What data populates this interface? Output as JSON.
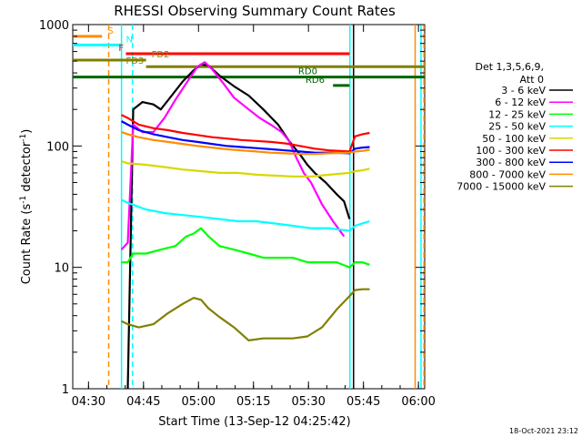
{
  "chart_data": {
    "type": "line",
    "title": "RHESSI Observing Summary Count Rates",
    "xlabel": "Start Time (13-Sep-12 04:25:42)",
    "ylabel": "Count Rate (s⁻¹ detector⁻¹)",
    "ylabel_parts": {
      "a": "Count Rate (s",
      "b": "-1",
      "c": " detector",
      "d": "-1",
      "e": ")"
    },
    "yscale": "log",
    "ylim": [
      1,
      1000
    ],
    "xlim_minutes": [
      0,
      96
    ],
    "x_ticks": [
      {
        "label": "04:30",
        "m": 4.3
      },
      {
        "label": "04:45",
        "m": 19.3
      },
      {
        "label": "05:00",
        "m": 34.3
      },
      {
        "label": "05:15",
        "m": 49.3
      },
      {
        "label": "05:30",
        "m": 64.3
      },
      {
        "label": "05:45",
        "m": 79.3
      },
      {
        "label": "06:00",
        "m": 94.3
      }
    ],
    "y_ticks": [
      {
        "label": "1",
        "v": 1
      },
      {
        "label": "10",
        "v": 10
      },
      {
        "label": "100",
        "v": 100
      },
      {
        "label": "1000",
        "v": 1000
      }
    ],
    "legend_header": [
      "Det 1,3,5,6,9,",
      "Att 0"
    ],
    "legend_position": "right",
    "series": [
      {
        "name": "3 - 6 keV",
        "color": "#000000",
        "points": [
          [
            15,
            1
          ],
          [
            16.5,
            200
          ],
          [
            19,
            230
          ],
          [
            22,
            220
          ],
          [
            24,
            200
          ],
          [
            27,
            260
          ],
          [
            30,
            340
          ],
          [
            33,
            420
          ],
          [
            35,
            470
          ],
          [
            37,
            460
          ],
          [
            40,
            380
          ],
          [
            44,
            310
          ],
          [
            48,
            260
          ],
          [
            52,
            200
          ],
          [
            56,
            150
          ],
          [
            59,
            110
          ],
          [
            62,
            85
          ],
          [
            64,
            70
          ],
          [
            66,
            60
          ],
          [
            69,
            50
          ],
          [
            72,
            40
          ],
          [
            74,
            35
          ],
          [
            75.5,
            25
          ]
        ]
      },
      {
        "name": "6 - 12 keV",
        "color": "#ff00ff",
        "points": [
          [
            13.3,
            14
          ],
          [
            15,
            16
          ],
          [
            16.5,
            150
          ],
          [
            19,
            130
          ],
          [
            22,
            130
          ],
          [
            25,
            170
          ],
          [
            28,
            240
          ],
          [
            31,
            330
          ],
          [
            34,
            450
          ],
          [
            36,
            490
          ],
          [
            38,
            430
          ],
          [
            41,
            330
          ],
          [
            44,
            250
          ],
          [
            48,
            200
          ],
          [
            51,
            170
          ],
          [
            54,
            150
          ],
          [
            57,
            130
          ],
          [
            59,
            110
          ],
          [
            61,
            80
          ],
          [
            63,
            60
          ],
          [
            65,
            50
          ],
          [
            68,
            33
          ],
          [
            71,
            24
          ],
          [
            74,
            18
          ]
        ]
      },
      {
        "name": "12 - 25 keV",
        "color": "#00ff00",
        "points": [
          [
            13.3,
            11
          ],
          [
            15,
            11
          ],
          [
            16.5,
            13
          ],
          [
            20,
            13
          ],
          [
            24,
            14
          ],
          [
            28,
            15
          ],
          [
            31,
            18
          ],
          [
            33,
            19
          ],
          [
            35,
            21
          ],
          [
            37,
            18
          ],
          [
            40,
            15
          ],
          [
            44,
            14
          ],
          [
            48,
            13
          ],
          [
            52,
            12
          ],
          [
            56,
            12
          ],
          [
            60,
            12
          ],
          [
            64,
            11
          ],
          [
            68,
            11
          ],
          [
            72,
            11
          ],
          [
            75.5,
            10
          ],
          [
            77,
            11
          ],
          [
            79,
            11
          ],
          [
            81,
            10.5
          ]
        ]
      },
      {
        "name": "25 - 50 keV",
        "color": "#00ffff",
        "points": [
          [
            13.3,
            36
          ],
          [
            15,
            34
          ],
          [
            20,
            30
          ],
          [
            25,
            28
          ],
          [
            30,
            27
          ],
          [
            35,
            26
          ],
          [
            40,
            25
          ],
          [
            45,
            24
          ],
          [
            50,
            24
          ],
          [
            55,
            23
          ],
          [
            60,
            22
          ],
          [
            65,
            21
          ],
          [
            70,
            21
          ],
          [
            75.5,
            20
          ],
          [
            77,
            22
          ],
          [
            79,
            23
          ],
          [
            81,
            24
          ]
        ]
      },
      {
        "name": "50 - 100 keV",
        "color": "#d8d800",
        "points": [
          [
            13.3,
            75
          ],
          [
            15,
            72
          ],
          [
            20,
            70
          ],
          [
            25,
            67
          ],
          [
            30,
            64
          ],
          [
            35,
            62
          ],
          [
            40,
            60
          ],
          [
            45,
            60
          ],
          [
            50,
            58
          ],
          [
            55,
            57
          ],
          [
            60,
            56
          ],
          [
            65,
            56
          ],
          [
            70,
            58
          ],
          [
            75.5,
            60
          ],
          [
            77,
            62
          ],
          [
            79,
            63
          ],
          [
            81,
            65
          ]
        ]
      },
      {
        "name": "100 - 300 keV",
        "color": "#ff0000",
        "points": [
          [
            13.3,
            180
          ],
          [
            15,
            170
          ],
          [
            18,
            150
          ],
          [
            22,
            140
          ],
          [
            26,
            135
          ],
          [
            30,
            128
          ],
          [
            34,
            123
          ],
          [
            38,
            118
          ],
          [
            42,
            115
          ],
          [
            46,
            112
          ],
          [
            50,
            110
          ],
          [
            54,
            108
          ],
          [
            58,
            105
          ],
          [
            62,
            100
          ],
          [
            66,
            95
          ],
          [
            70,
            92
          ],
          [
            75.5,
            90
          ],
          [
            77,
            120
          ],
          [
            79,
            125
          ],
          [
            81,
            128
          ]
        ]
      },
      {
        "name": "300 - 800 keV",
        "color": "#0000ff",
        "points": [
          [
            13.3,
            160
          ],
          [
            15,
            150
          ],
          [
            18,
            135
          ],
          [
            22,
            125
          ],
          [
            26,
            118
          ],
          [
            30,
            112
          ],
          [
            34,
            108
          ],
          [
            38,
            104
          ],
          [
            42,
            100
          ],
          [
            46,
            98
          ],
          [
            50,
            96
          ],
          [
            54,
            94
          ],
          [
            58,
            92
          ],
          [
            62,
            90
          ],
          [
            66,
            88
          ],
          [
            70,
            88
          ],
          [
            75.5,
            87
          ],
          [
            77,
            95
          ],
          [
            79,
            97
          ],
          [
            81,
            98
          ]
        ]
      },
      {
        "name": "800 - 7000 keV",
        "color": "#ff8c00",
        "points": [
          [
            13.3,
            130
          ],
          [
            15,
            125
          ],
          [
            18,
            118
          ],
          [
            22,
            112
          ],
          [
            26,
            108
          ],
          [
            30,
            104
          ],
          [
            34,
            100
          ],
          [
            38,
            97
          ],
          [
            42,
            94
          ],
          [
            46,
            92
          ],
          [
            50,
            90
          ],
          [
            54,
            88
          ],
          [
            58,
            87
          ],
          [
            62,
            86
          ],
          [
            66,
            86
          ],
          [
            70,
            87
          ],
          [
            75.5,
            88
          ],
          [
            77,
            90
          ],
          [
            79,
            91
          ],
          [
            81,
            93
          ]
        ]
      },
      {
        "name": "7000 - 15000 keV",
        "color": "#808000",
        "points": [
          [
            13.3,
            3.6
          ],
          [
            15,
            3.4
          ],
          [
            18,
            3.2
          ],
          [
            22,
            3.4
          ],
          [
            26,
            4.2
          ],
          [
            30,
            5.0
          ],
          [
            33,
            5.6
          ],
          [
            35,
            5.4
          ],
          [
            37,
            4.6
          ],
          [
            40,
            3.9
          ],
          [
            44,
            3.2
          ],
          [
            48,
            2.5
          ],
          [
            52,
            2.6
          ],
          [
            56,
            2.6
          ],
          [
            60,
            2.6
          ],
          [
            64,
            2.7
          ],
          [
            68,
            3.2
          ],
          [
            72,
            4.5
          ],
          [
            75.5,
            5.8
          ],
          [
            77,
            6.5
          ],
          [
            79,
            6.6
          ],
          [
            81,
            6.6
          ]
        ]
      }
    ],
    "annotations": [
      {
        "label": "S",
        "color": "#ff8c00",
        "x1": 0,
        "x2": 8,
        "level": 800,
        "label_x": 9.5
      },
      {
        "label": "N",
        "color": "#00ffff",
        "x1": 0,
        "x2": 13.3,
        "level": 680,
        "label_x": 14.5
      },
      {
        "label": "F",
        "color": "#ff0000",
        "x1": 14.5,
        "x2": 75.5,
        "level": 575,
        "label_x": 12.5
      },
      {
        "label": "FD2",
        "color": "#808000",
        "x1": 0,
        "x2": 20,
        "level": 510,
        "label_x": 21.5
      },
      {
        "label": "FD3",
        "color": "#808000",
        "x1": 20,
        "x2": 96,
        "level": 450,
        "label_x": 14.5
      },
      {
        "label": "RD0",
        "color": "#006400",
        "x1": 0,
        "x2": 96,
        "level": 370,
        "label_x": 61.5
      },
      {
        "label": "RD6",
        "color": "#006400",
        "x1": 71,
        "x2": 75.5,
        "level": 315,
        "label_x": 63.5
      }
    ],
    "vertical_markers": [
      {
        "m": 9.8,
        "color": "#ff8c00",
        "dash": true
      },
      {
        "m": 13.3,
        "color": "#00ffff",
        "dash": false
      },
      {
        "m": 16.3,
        "color": "#00ffff",
        "dash": true
      },
      {
        "m": 75.6,
        "color": "#00ffff",
        "dash": false
      },
      {
        "m": 76.6,
        "color": "#000000",
        "dash": false
      },
      {
        "m": 93.4,
        "color": "#ff8c00",
        "dash": false
      },
      {
        "m": 95.0,
        "color": "#00ffff",
        "dash": false
      },
      {
        "m": 95.8,
        "color": "#ff8c00",
        "dash": true
      }
    ],
    "footer_stamp": "18-Oct-2021 23:12"
  }
}
